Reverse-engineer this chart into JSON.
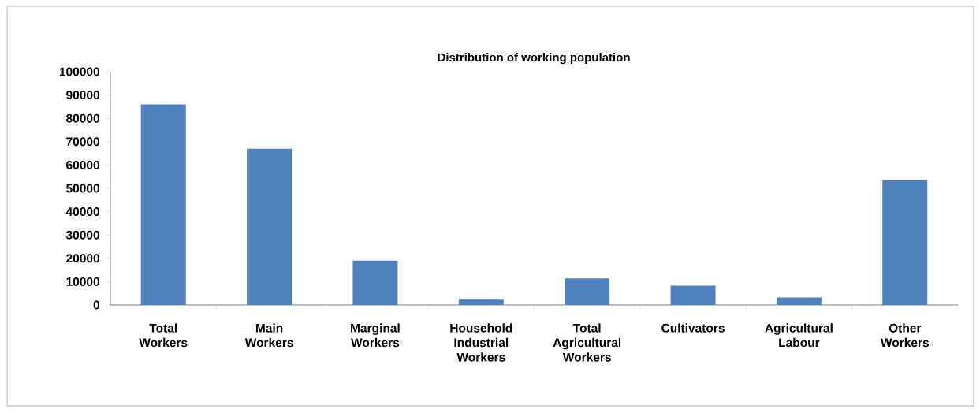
{
  "chart_data": {
    "type": "bar",
    "title": "Distribution of working population",
    "categories": [
      "Total Workers",
      "Main Workers",
      "Marginal Workers",
      "Household Industrial Workers",
      "Total Agricultural Workers",
      "Cultivators",
      "Agricultural Labour",
      "Other Workers"
    ],
    "values": [
      86000,
      67000,
      19000,
      2600,
      11400,
      8300,
      3200,
      53500
    ],
    "color": "#4f81bd",
    "ylim": [
      0,
      100000
    ],
    "yticks": [
      0,
      10000,
      20000,
      30000,
      40000,
      50000,
      60000,
      70000,
      80000,
      90000,
      100000
    ],
    "grid": false
  }
}
